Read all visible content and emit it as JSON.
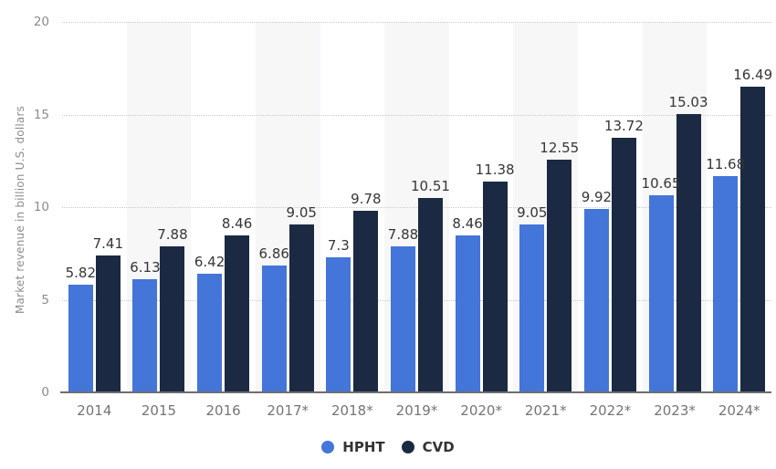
{
  "chart_data": {
    "type": "bar",
    "title": "",
    "ylabel": "Market revenue in billion U.S. dollars",
    "xlabel": "",
    "categories": [
      "2014",
      "2015",
      "2016",
      "2017*",
      "2018*",
      "2019*",
      "2020*",
      "2021*",
      "2022*",
      "2023*",
      "2024*"
    ],
    "series": [
      {
        "name": "HPHT",
        "color": "#4475d8",
        "values": [
          5.82,
          6.13,
          6.42,
          6.86,
          7.3,
          7.88,
          8.46,
          9.05,
          9.92,
          10.65,
          11.68
        ]
      },
      {
        "name": "CVD",
        "color": "#1b2a42",
        "values": [
          7.41,
          7.88,
          8.46,
          9.05,
          9.78,
          10.51,
          11.38,
          12.55,
          13.72,
          15.03,
          16.49
        ]
      }
    ],
    "ylim": [
      0,
      20
    ],
    "yticks": [
      0,
      5,
      10,
      15,
      20
    ],
    "grid": "horizontal-dotted",
    "column_stripes": "alternate-light-gray",
    "legend_position": "bottom-center",
    "data_labels": "above-bars"
  },
  "style_colors": {
    "gridline": "#c9c9c9",
    "axis_line": "#6e6e6e",
    "stripe": "#f7f7f8",
    "tick_text": "#8c8c8c",
    "category_text": "#757575",
    "data_label_text": "#363636"
  }
}
